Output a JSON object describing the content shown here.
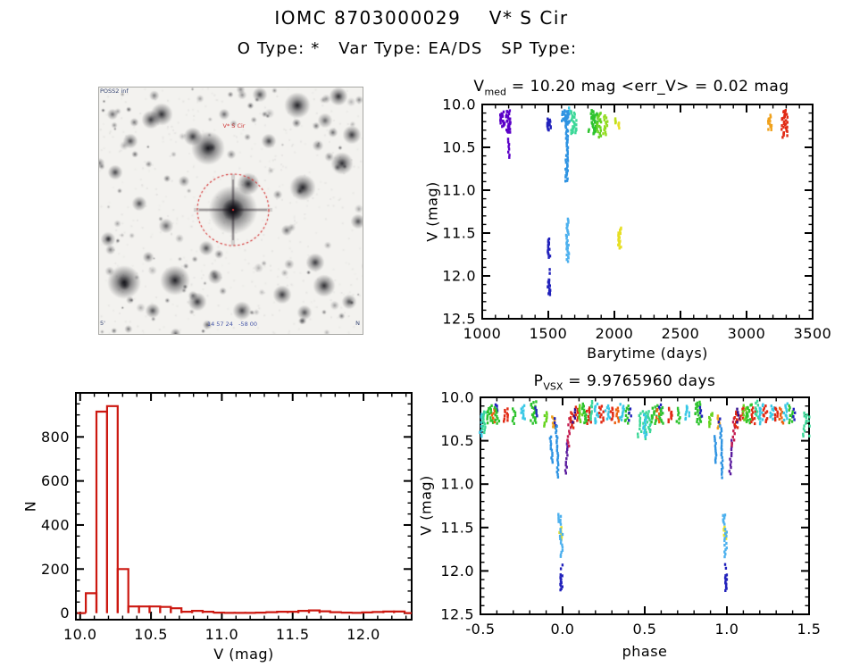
{
  "page": {
    "title": "IOMC 8703000029    V* S Cir",
    "subtitle": "O Type: *   Var Type: EA/DS   SP Type:"
  },
  "finder": {
    "label_top_left": "POSS2 inf",
    "target_label": "V* S Cir",
    "label_bottom_center": "14 57 24   -58 00",
    "label_bottom_left": "5'",
    "label_bottom_right": "N",
    "circle_color": "#d43030"
  },
  "palette": {
    "violet": "#5b00c8",
    "purple": "#5a1b9e",
    "indigo": "#34108f",
    "navy": "#2121bb",
    "dodger": "#2e93e2",
    "sky": "#4cb0ee",
    "cyan": "#38c8e6",
    "spring": "#3cd898",
    "green": "#2dc32d",
    "lime": "#66d41f",
    "lime2": "#92dc1f",
    "ygreen": "#bfe01d",
    "yellow": "#e7df25",
    "orange": "#f0a11b",
    "orangered": "#ed6112",
    "red": "#e12a14",
    "crimson": "#c41d50"
  },
  "chart_data": [
    {
      "type": "scatter",
      "title_base": "V",
      "title_sub": "med",
      "title_rest": " = 10.20 mag <err_V> = 0.02 mag",
      "xlabel": "Barytime (days)",
      "ylabel": "V (mag)",
      "xlim": [
        1000,
        3500
      ],
      "ylim_top": 10.0,
      "ylim_bottom": 12.5,
      "y_reversed": true,
      "xticks": [
        "1000",
        "1500",
        "2000",
        "2500",
        "3000",
        "3500"
      ],
      "yticks": [
        "10.0",
        "10.5",
        "11.0",
        "11.5",
        "12.0",
        "12.5"
      ],
      "xminor": 100,
      "yminor": 0.1,
      "grid": false,
      "clusters": [
        [
          1138,
          10.12,
          10.18,
          "violet",
          5,
          5
        ],
        [
          1152,
          10.09,
          10.26,
          "violet",
          13,
          4
        ],
        [
          1166,
          10.2,
          10.25,
          "violet",
          4,
          3
        ],
        [
          1197,
          10.07,
          10.33,
          "violet",
          28,
          5
        ],
        [
          1201,
          10.4,
          10.62,
          "violet",
          8,
          2
        ],
        [
          1505,
          10.17,
          10.3,
          "navy",
          15,
          4
        ],
        [
          1503,
          11.57,
          11.66,
          "navy",
          7,
          3
        ],
        [
          1505,
          11.68,
          11.78,
          "navy",
          8,
          3
        ],
        [
          1506,
          11.93,
          11.97,
          "navy",
          2,
          2
        ],
        [
          1505,
          12.04,
          12.22,
          "navy",
          14,
          3
        ],
        [
          1633,
          10.07,
          10.22,
          "dodger",
          26,
          9
        ],
        [
          1639,
          10.15,
          10.9,
          "dodger",
          48,
          3
        ],
        [
          1644,
          11.34,
          11.6,
          "sky",
          16,
          3
        ],
        [
          1647,
          11.62,
          11.83,
          "sky",
          13,
          3
        ],
        [
          1663,
          10.04,
          10.07,
          "cyan",
          2,
          3
        ],
        [
          1692,
          10.08,
          10.34,
          "spring",
          22,
          6
        ],
        [
          1706,
          10.26,
          10.33,
          "spring",
          5,
          3
        ],
        [
          1830,
          10.07,
          10.33,
          "green",
          26,
          8
        ],
        [
          1856,
          10.11,
          10.34,
          "green",
          18,
          5
        ],
        [
          1886,
          10.1,
          10.38,
          "lime",
          20,
          5
        ],
        [
          1932,
          10.13,
          10.35,
          "lime2",
          15,
          5
        ],
        [
          2014,
          10.16,
          10.22,
          "ygreen",
          5,
          4
        ],
        [
          2032,
          10.21,
          10.27,
          "yellow",
          5,
          4
        ],
        [
          2040,
          11.44,
          11.67,
          "yellow",
          20,
          4
        ],
        [
          3176,
          10.13,
          10.3,
          "orange",
          13,
          4
        ],
        [
          3286,
          10.07,
          10.38,
          "red",
          32,
          7
        ]
      ]
    },
    {
      "type": "bar",
      "xlabel": "V (mag)",
      "ylabel": "N",
      "xlim": [
        9.97,
        12.34
      ],
      "ylim": [
        -30,
        1000
      ],
      "xticks": [
        "10.0",
        "10.5",
        "11.0",
        "11.5",
        "12.0"
      ],
      "yticks": [
        "0",
        "200",
        "400",
        "600",
        "800"
      ],
      "xminor": 0.1,
      "yminor": 50,
      "grid": false,
      "bar_color": "#cc1810",
      "bin_start": 10.04,
      "bin_width": 0.075,
      "counts": [
        90,
        915,
        940,
        200,
        30,
        30,
        30,
        28,
        22,
        6,
        10,
        6,
        2,
        1,
        1,
        1,
        2,
        4,
        6,
        6,
        10,
        12,
        8,
        4,
        2,
        1,
        3,
        5,
        7,
        7
      ]
    },
    {
      "type": "scatter",
      "title_base": "P",
      "title_sub": "VSX",
      "title_rest": " = 9.9765960 days",
      "xlabel": "phase",
      "ylabel": "V (mag)",
      "xlim": [
        -0.5,
        1.5
      ],
      "ylim_top": 10.0,
      "ylim_bottom": 12.5,
      "y_reversed": true,
      "xticks": [
        "-0.5",
        "0.0",
        "0.5",
        "1.0",
        "1.5"
      ],
      "yticks": [
        "10.0",
        "10.5",
        "11.0",
        "11.5",
        "12.0",
        "12.5"
      ],
      "xminor": 0.1,
      "yminor": 0.1,
      "grid": false,
      "repeat": 1.0,
      "clusters": [
        [
          -0.499,
          10.2,
          10.45,
          "cyan",
          12,
          4
        ],
        [
          -0.478,
          10.16,
          10.4,
          "spring",
          14,
          5
        ],
        [
          -0.44,
          10.1,
          10.3,
          "green",
          16,
          7
        ],
        [
          -0.42,
          10.14,
          10.28,
          "orangered",
          7,
          4
        ],
        [
          -0.405,
          10.08,
          10.16,
          "navy",
          4,
          3
        ],
        [
          -0.4,
          10.12,
          10.3,
          "green",
          10,
          5
        ],
        [
          -0.345,
          10.13,
          10.28,
          "red",
          10,
          5
        ],
        [
          -0.295,
          10.13,
          10.3,
          "green",
          8,
          4
        ],
        [
          -0.24,
          10.1,
          10.25,
          "cyan",
          10,
          5
        ],
        [
          -0.175,
          10.05,
          10.3,
          "green",
          20,
          7
        ],
        [
          -0.16,
          10.12,
          10.22,
          "navy",
          4,
          3
        ],
        [
          -0.1,
          10.18,
          10.33,
          "lime",
          10,
          5
        ],
        [
          -0.055,
          10.22,
          10.35,
          "orange",
          8,
          4
        ],
        [
          -0.045,
          10.25,
          10.33,
          "navy",
          3,
          2
        ],
        [
          -0.072,
          10.45,
          10.75,
          "dodger",
          12,
          2,
          0.007
        ],
        [
          -0.038,
          10.33,
          10.92,
          "dodger",
          22,
          2,
          0.01
        ],
        [
          -0.018,
          11.35,
          11.46,
          "sky",
          8,
          3
        ],
        [
          -0.012,
          11.5,
          11.63,
          "yellow",
          8,
          3
        ],
        [
          -0.008,
          11.52,
          11.76,
          "sky",
          10,
          3
        ],
        [
          -0.01,
          11.78,
          11.84,
          "sky",
          3,
          2
        ],
        [
          -0.006,
          11.93,
          11.97,
          "navy",
          2,
          2
        ],
        [
          -0.006,
          12.04,
          12.22,
          "navy",
          12,
          3
        ],
        [
          0.032,
          10.5,
          10.88,
          "purple",
          12,
          2,
          -0.014
        ],
        [
          0.045,
          10.25,
          10.56,
          "crimson",
          10,
          3,
          -0.01
        ],
        [
          0.056,
          10.17,
          10.35,
          "red",
          10,
          4
        ],
        [
          0.07,
          10.14,
          10.28,
          "indigo",
          5,
          3
        ],
        [
          0.09,
          10.12,
          10.26,
          "red",
          8,
          4
        ],
        [
          0.11,
          10.1,
          10.28,
          "lime",
          10,
          5
        ],
        [
          0.135,
          10.08,
          10.3,
          "green",
          14,
          6
        ],
        [
          0.16,
          10.12,
          10.3,
          "red",
          10,
          5
        ],
        [
          0.185,
          10.05,
          10.25,
          "spring",
          10,
          5
        ],
        [
          0.21,
          10.08,
          10.3,
          "cyan",
          12,
          5
        ],
        [
          0.235,
          10.1,
          10.28,
          "red",
          10,
          5
        ],
        [
          0.275,
          10.1,
          10.25,
          "cyan",
          9,
          5
        ],
        [
          0.3,
          10.12,
          10.26,
          "red",
          8,
          4
        ],
        [
          0.33,
          10.12,
          10.3,
          "orangered",
          9,
          5
        ],
        [
          0.36,
          10.08,
          10.26,
          "cyan",
          10,
          5
        ],
        [
          0.39,
          10.1,
          10.3,
          "green",
          10,
          5
        ],
        [
          0.41,
          10.14,
          10.26,
          "navy",
          4,
          3
        ],
        [
          0.475,
          10.18,
          10.45,
          "spring",
          10,
          4,
          -0.008
        ],
        [
          0.497,
          10.16,
          10.48,
          "spring",
          10,
          4,
          0.01
        ]
      ]
    }
  ]
}
